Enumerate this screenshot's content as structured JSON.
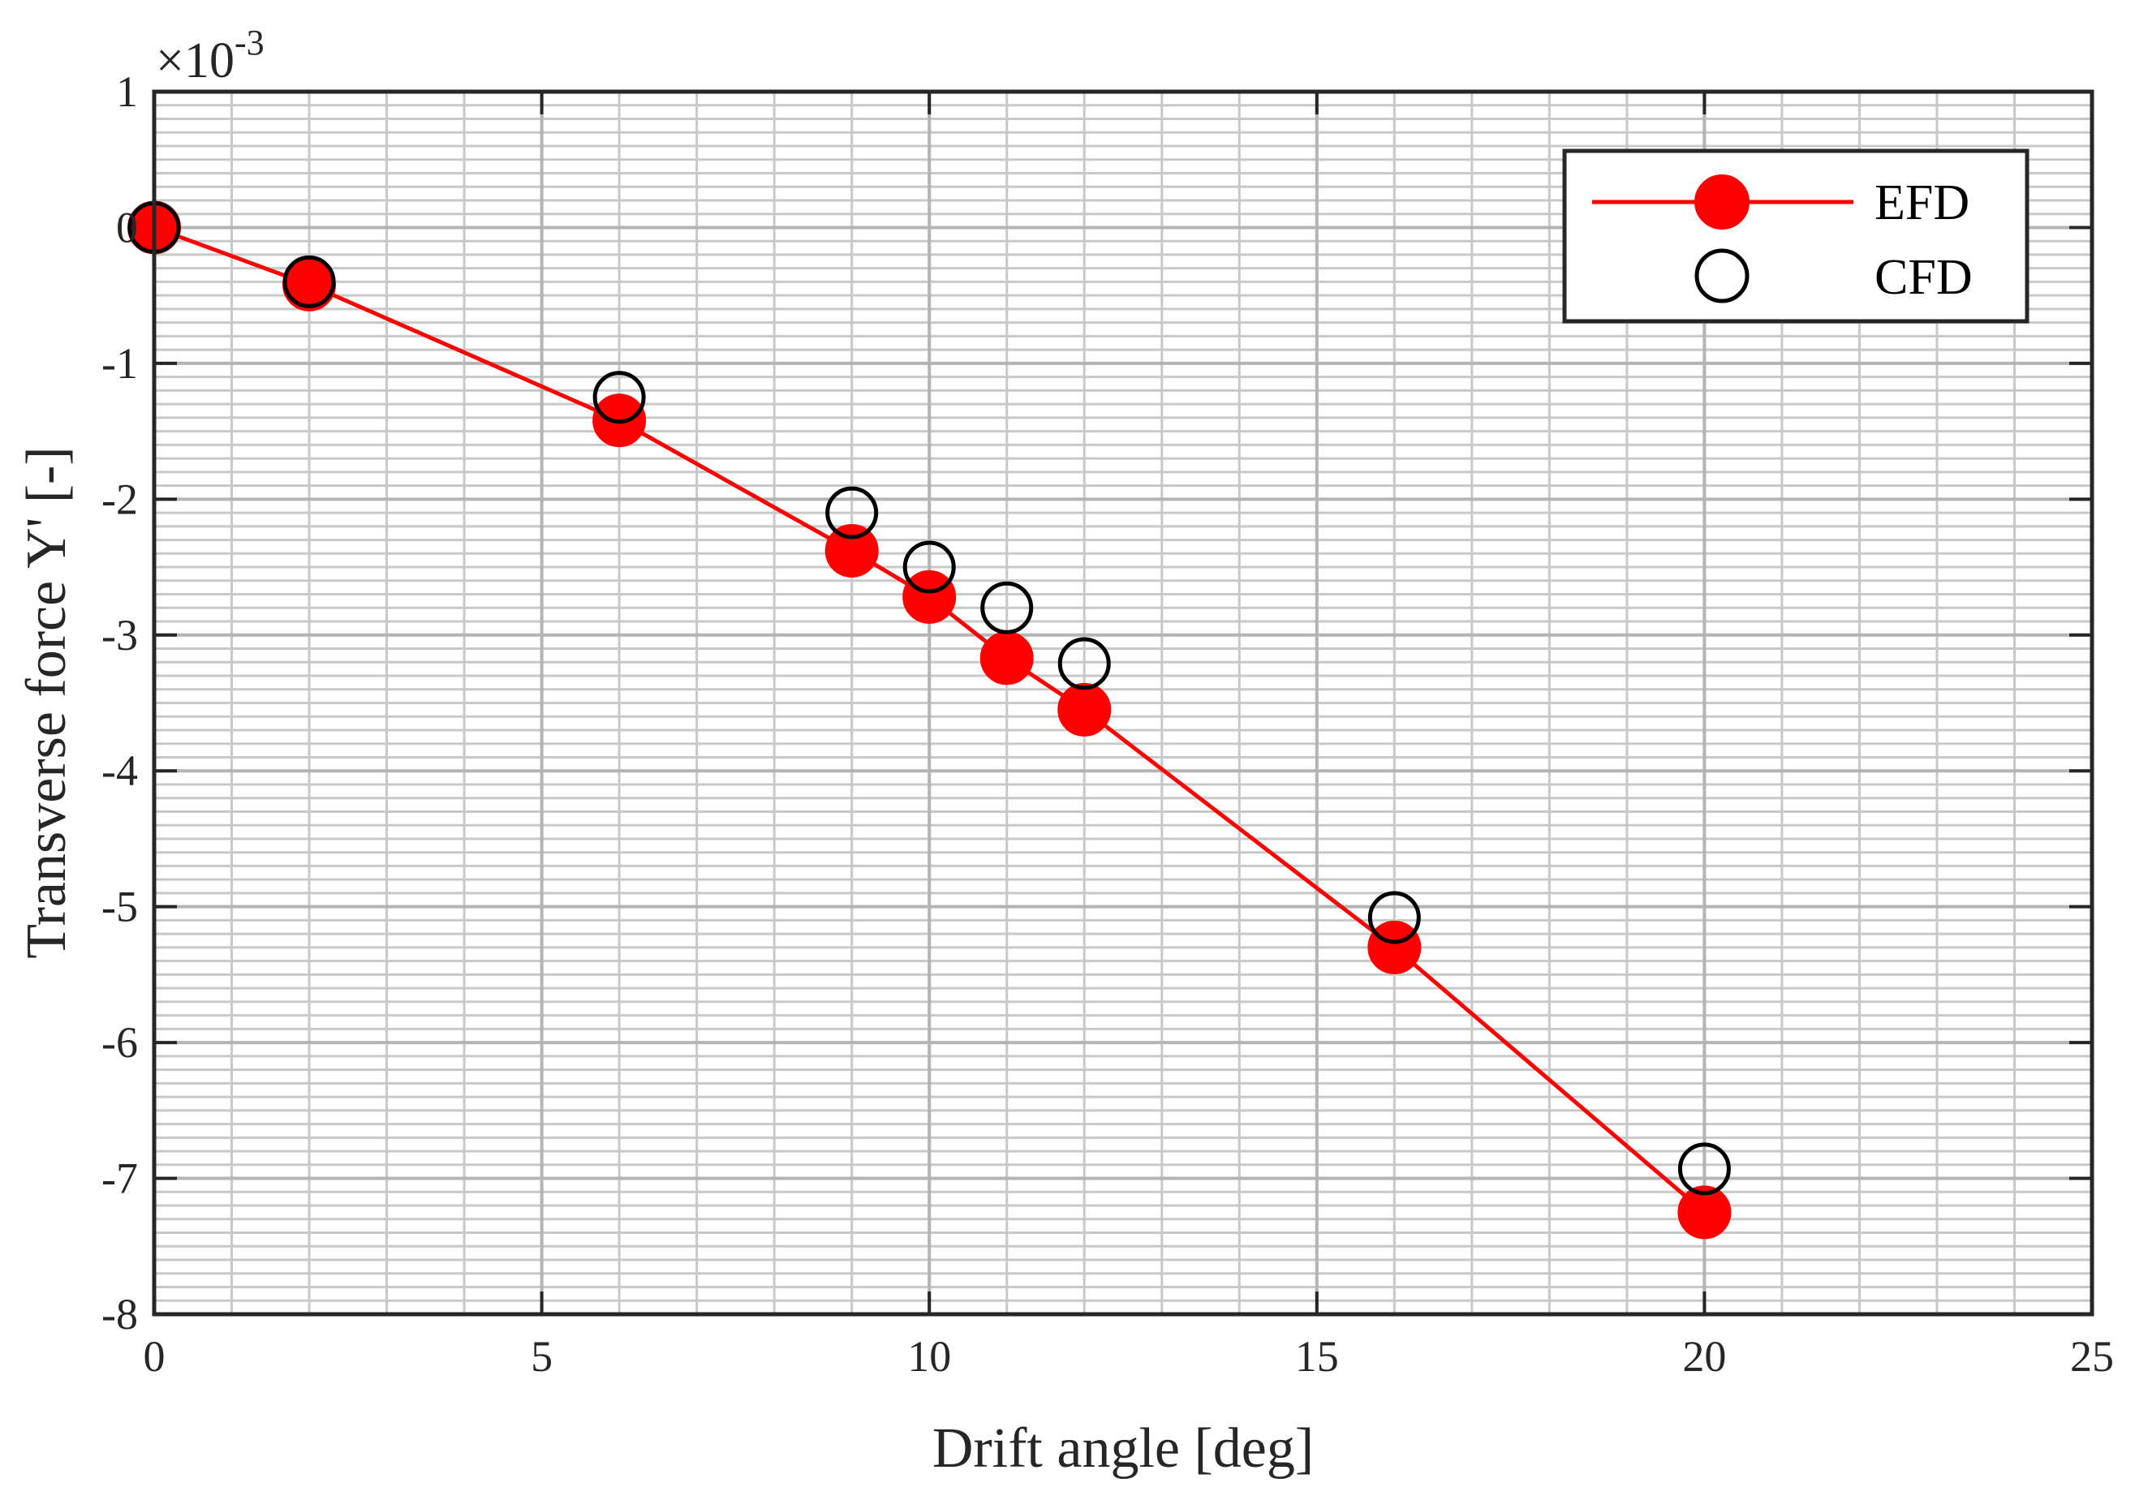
{
  "chart_data": {
    "type": "line",
    "xlabel": "Drift angle [deg]",
    "ylabel": "Transverse force Y' [-]",
    "xlim": [
      0,
      25
    ],
    "ylim": [
      -8,
      1
    ],
    "xticks": [
      0,
      5,
      10,
      15,
      20,
      25
    ],
    "yticks": [
      -8,
      -7,
      -6,
      -5,
      -4,
      -3,
      -2,
      -1,
      0,
      1
    ],
    "y_exponent": {
      "base": "×10",
      "power": "-3"
    },
    "grid": true,
    "minor_grid": true,
    "legend_position": "top-right",
    "series": [
      {
        "name": "EFD",
        "style": "line-with-filled-markers",
        "color": "#ff0000",
        "x": [
          0,
          2,
          6,
          9,
          10,
          11,
          12,
          16,
          20
        ],
        "y": [
          0,
          -0.42,
          -1.42,
          -2.38,
          -2.72,
          -3.17,
          -3.55,
          -5.3,
          -7.25
        ]
      },
      {
        "name": "CFD",
        "style": "open-markers",
        "color": "#000000",
        "x": [
          0,
          2,
          6,
          9,
          10,
          11,
          12,
          16,
          20
        ],
        "y": [
          0,
          -0.4,
          -1.25,
          -2.1,
          -2.5,
          -2.8,
          -3.21,
          -5.08,
          -6.93
        ]
      }
    ]
  }
}
